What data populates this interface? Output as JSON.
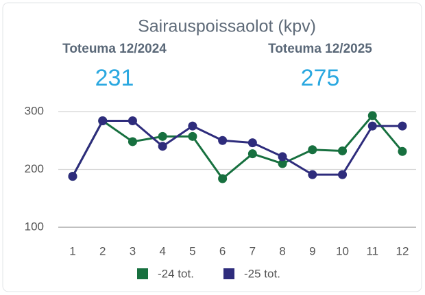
{
  "chart_data": {
    "type": "line",
    "title": "Sairauspoissaolot (kpv)",
    "kpis": [
      {
        "label": "Toteuma 12/2024",
        "value": 231
      },
      {
        "label": "Toteuma 12/2025",
        "value": 275
      }
    ],
    "categories": [
      "1",
      "2",
      "3",
      "4",
      "5",
      "6",
      "7",
      "8",
      "9",
      "10",
      "11",
      "12"
    ],
    "series": [
      {
        "name": "-24 tot.",
        "color": "#17703f",
        "values": [
          188,
          284,
          248,
          257,
          257,
          184,
          227,
          210,
          234,
          232,
          293,
          231
        ]
      },
      {
        "name": "-25 tot.",
        "color": "#2e2c7c",
        "values": [
          188,
          284,
          284,
          240,
          275,
          250,
          246,
          222,
          191,
          191,
          275,
          275
        ]
      }
    ],
    "ylim": [
      100,
      300
    ],
    "yticks": [
      100,
      200,
      300
    ],
    "grid": true,
    "legend": "bottom"
  }
}
